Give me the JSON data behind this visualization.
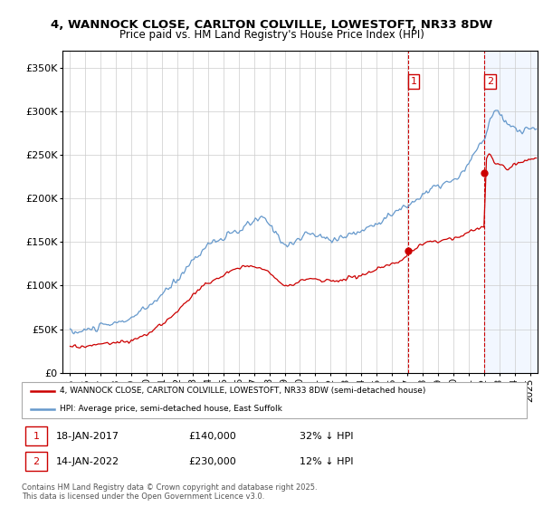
{
  "title1": "4, WANNOCK CLOSE, CARLTON COLVILLE, LOWESTOFT, NR33 8DW",
  "title2": "Price paid vs. HM Land Registry's House Price Index (HPI)",
  "yticks": [
    0,
    50000,
    100000,
    150000,
    200000,
    250000,
    300000,
    350000
  ],
  "ytick_labels": [
    "£0",
    "£50K",
    "£100K",
    "£150K",
    "£200K",
    "£250K",
    "£300K",
    "£350K"
  ],
  "xlim_start": 1994.5,
  "xlim_end": 2025.5,
  "ylim_min": 0,
  "ylim_max": 370000,
  "purchase1_date": 2017.05,
  "purchase1_price": 140000,
  "purchase2_date": 2022.04,
  "purchase2_price": 230000,
  "legend_line1": "4, WANNOCK CLOSE, CARLTON COLVILLE, LOWESTOFT, NR33 8DW (semi-detached house)",
  "legend_line2": "HPI: Average price, semi-detached house, East Suffolk",
  "footer": "Contains HM Land Registry data © Crown copyright and database right 2025.\nThis data is licensed under the Open Government Licence v3.0.",
  "property_color": "#cc0000",
  "hpi_color": "#6699cc",
  "vline_color": "#cc0000",
  "shade_color": "#ddeeff"
}
